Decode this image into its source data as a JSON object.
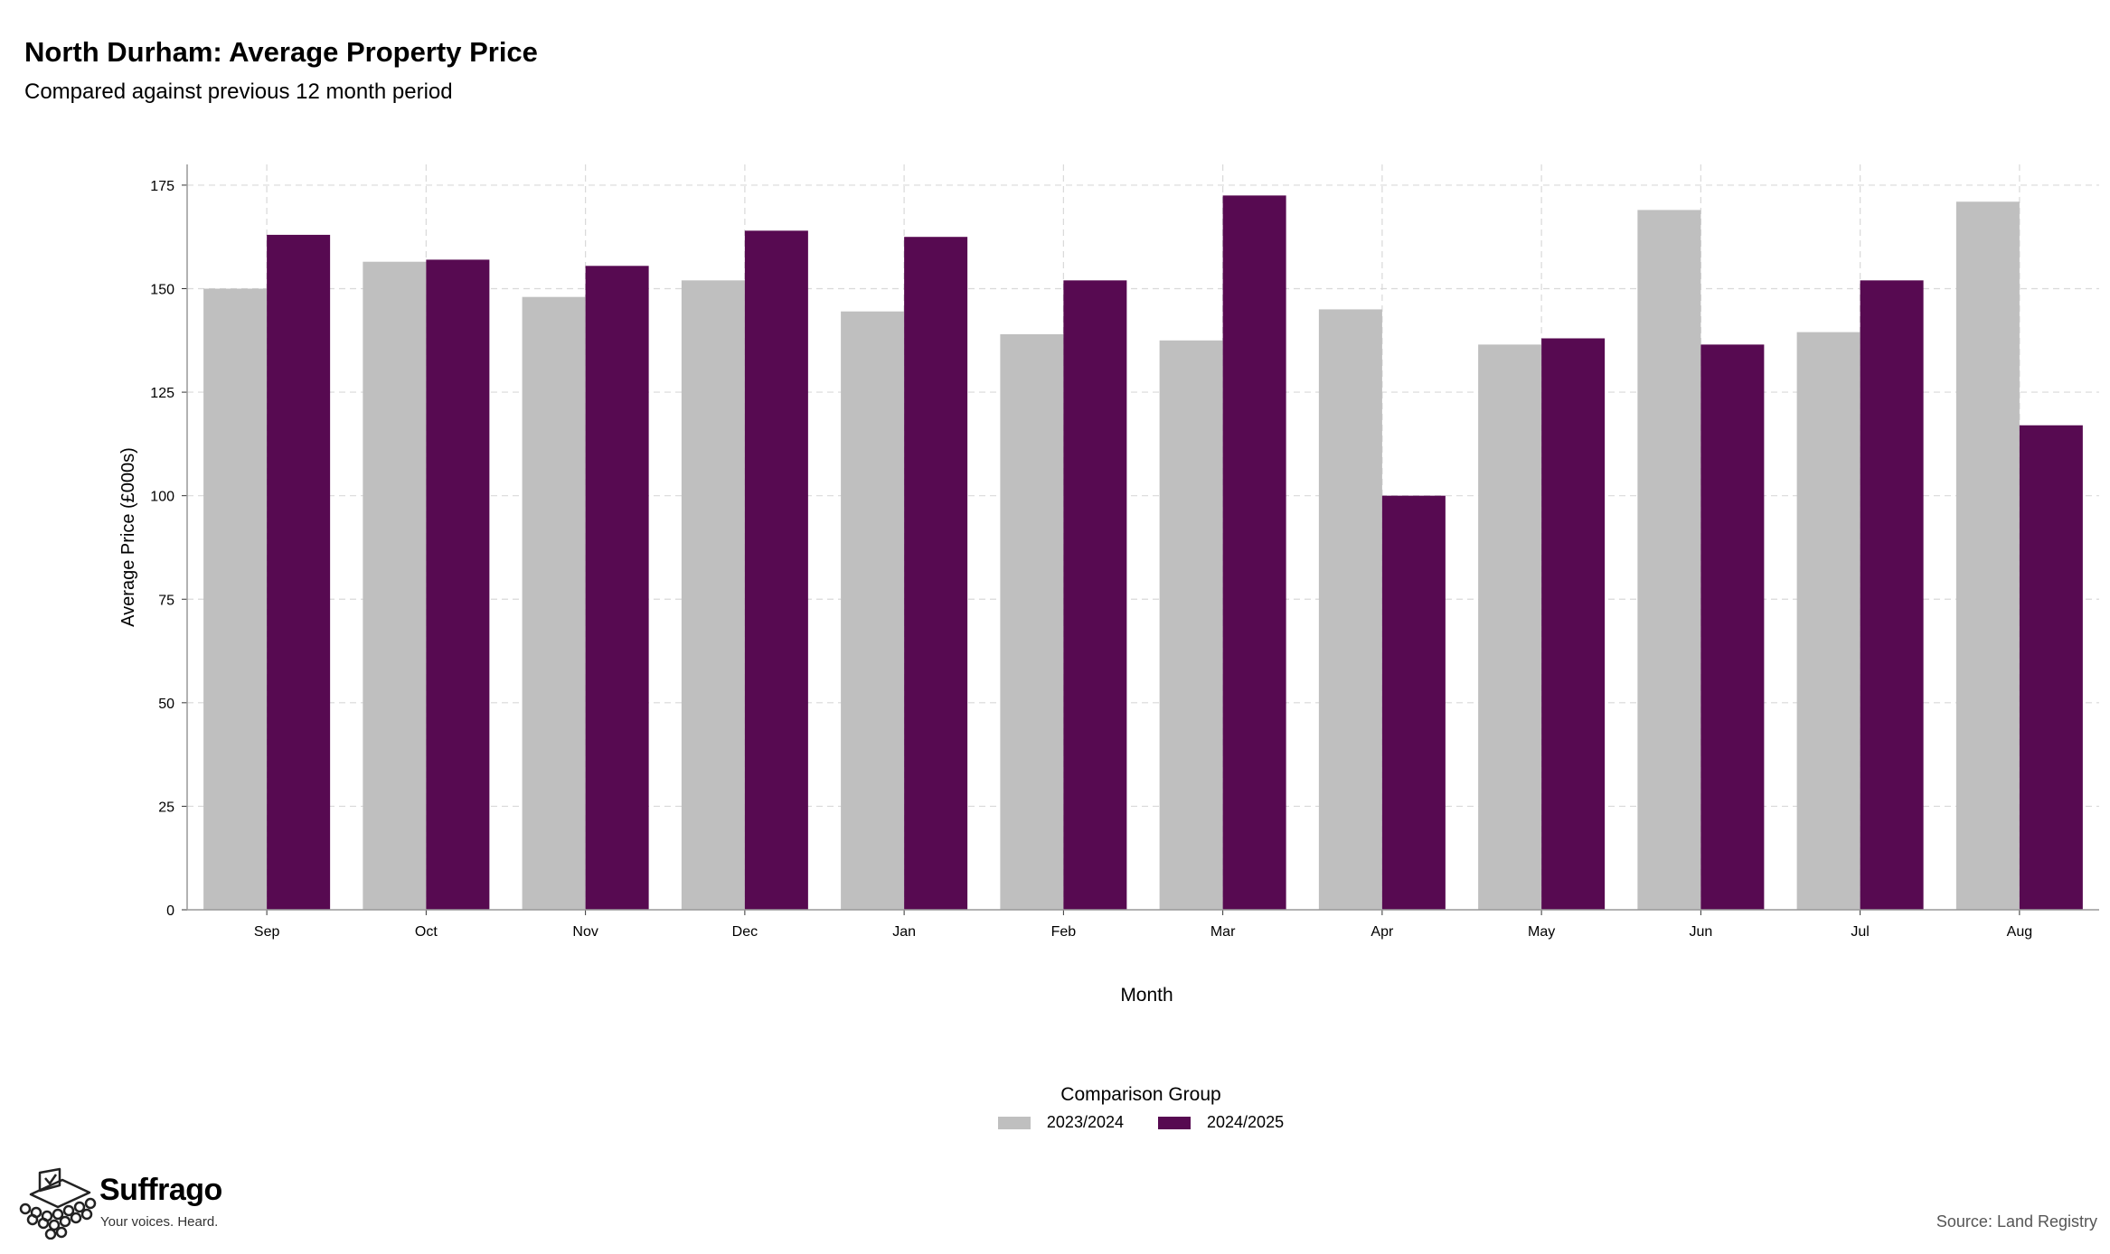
{
  "title": "North Durham: Average Property Price",
  "subtitle": "Compared against previous 12 month period",
  "source": "Source: Land Registry",
  "logo": {
    "name": "Suffrago",
    "tagline": "Your voices. Heard."
  },
  "colors": {
    "series_2023_2024": "#bfbfbf",
    "series_2024_2025": "#570a51",
    "grid": "#d9d9d9",
    "axis": "#999999"
  },
  "chart_data": {
    "type": "bar",
    "title": "North Durham: Average Property Price",
    "subtitle": "Compared against previous 12 month period",
    "xlabel": "Month",
    "ylabel": "Average Price (£000s)",
    "ylim": [
      0,
      180
    ],
    "yticks": [
      0,
      25,
      50,
      75,
      100,
      125,
      150,
      175
    ],
    "grid": true,
    "legend_title": "Comparison Group",
    "legend_position": "bottom",
    "categories": [
      "Sep",
      "Oct",
      "Nov",
      "Dec",
      "Jan",
      "Feb",
      "Mar",
      "Apr",
      "May",
      "Jun",
      "Jul",
      "Aug"
    ],
    "series": [
      {
        "name": "2023/2024",
        "color": "#bfbfbf",
        "values": [
          150,
          156.5,
          148,
          152,
          144.5,
          139,
          137.5,
          145,
          136.5,
          169,
          139.5,
          171
        ]
      },
      {
        "name": "2024/2025",
        "color": "#570a51",
        "values": [
          163,
          157,
          155.5,
          164,
          162.5,
          152,
          172.5,
          100,
          138,
          136.5,
          152,
          117
        ]
      }
    ]
  }
}
